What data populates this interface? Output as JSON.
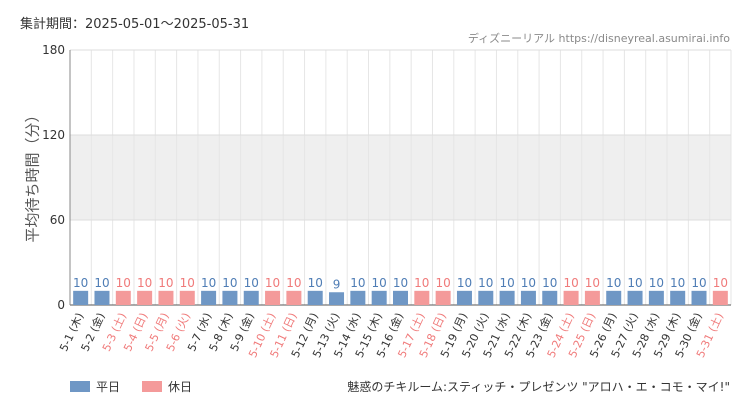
{
  "header": {
    "period_label": "集計期間：",
    "period_range": "2025-05-01～2025-05-31"
  },
  "source_text": "ディズニーリアル https://disneyreal.asumirai.info",
  "legend": [
    {
      "label": "平日",
      "color": "#6f97c5"
    },
    {
      "label": "休日",
      "color": "#f49a9a"
    }
  ],
  "chart_data": {
    "type": "bar",
    "title": "魅惑のチキルーム:スティッチ・プレゼンツ \"アロハ・エ・コモ・マイ!\"",
    "ylabel": "平均待ち時間（分）",
    "ylim": [
      0,
      180
    ],
    "yticks": [
      0,
      60,
      120,
      180
    ],
    "highlight_band": [
      60,
      120
    ],
    "grid": true,
    "categories": [
      "5-1 (木)",
      "5-2 (金)",
      "5-3 (土)",
      "5-4 (日)",
      "5-5 (月)",
      "5-6 (火)",
      "5-7 (水)",
      "5-8 (木)",
      "5-9 (金)",
      "5-10 (土)",
      "5-11 (日)",
      "5-12 (月)",
      "5-13 (火)",
      "5-14 (水)",
      "5-15 (木)",
      "5-16 (金)",
      "5-17 (土)",
      "5-18 (日)",
      "5-19 (月)",
      "5-20 (火)",
      "5-21 (水)",
      "5-22 (木)",
      "5-23 (金)",
      "5-24 (土)",
      "5-25 (日)",
      "5-26 (月)",
      "5-27 (火)",
      "5-28 (水)",
      "5-29 (木)",
      "5-30 (金)",
      "5-31 (土)"
    ],
    "values": [
      10,
      10,
      10,
      10,
      10,
      10,
      10,
      10,
      10,
      10,
      10,
      10,
      9,
      10,
      10,
      10,
      10,
      10,
      10,
      10,
      10,
      10,
      10,
      10,
      10,
      10,
      10,
      10,
      10,
      10,
      10
    ],
    "holiday": [
      false,
      false,
      true,
      true,
      true,
      true,
      false,
      false,
      false,
      true,
      true,
      false,
      false,
      false,
      false,
      false,
      true,
      true,
      false,
      false,
      false,
      false,
      false,
      true,
      true,
      false,
      false,
      false,
      false,
      false,
      true
    ],
    "colors": {
      "weekday": "#6f97c5",
      "holiday": "#f49a9a",
      "weekday_label": "#4f7db5",
      "holiday_label": "#f07a7a"
    }
  }
}
